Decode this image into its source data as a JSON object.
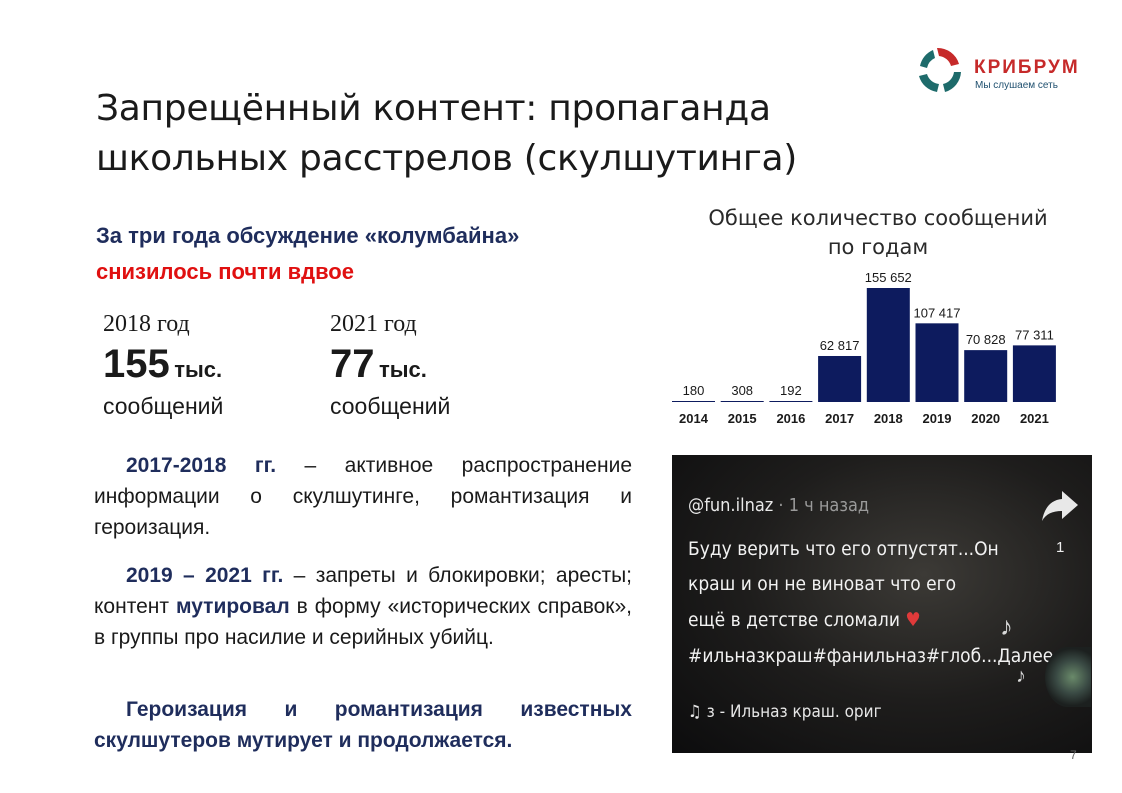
{
  "logo": {
    "name": "КРИБРУМ",
    "tagline": "Мы слушаем сеть"
  },
  "slide": {
    "title_line1": "Запрещённый контент: пропаганда",
    "title_line2": "школьных расстрелов (скулшутинга)",
    "headline_line1": "За три года обсуждение «колумбайна»",
    "headline_line2": "снизилось почти вдвое",
    "stats": [
      {
        "year": "2018 год",
        "number": "155",
        "unit": "тыс.",
        "label": "сообщений"
      },
      {
        "year": "2021 год",
        "number": "77",
        "unit": "тыс.",
        "label": "сообщений"
      }
    ],
    "para1_bold": "2017-2018 гг.",
    "para1_text": " – активное распространение информации о скулшутинге, романтизация и героизация.",
    "para2_bold": "2019 – 2021 гг.",
    "para2_text_a": " – запреты и блокировки; аресты; контент ",
    "para2_bold_b": "мутировал",
    "para2_text_b": " в форму «исторических справок», в группы про насилие и серийных убийц.",
    "para3_bold": "Героизация и романтизация известных скулшутеров мутирует и продолжается.",
    "page_number": "7"
  },
  "screenshot": {
    "user": "@fun.ilnaz",
    "time": " · 1 ч назад",
    "caption_line1": "Буду верить что его отпустят...Он",
    "caption_line2": "краш и он не виноват что его",
    "caption_line3": "ещё в детстве сломали",
    "caption_line4": "#ильназкраш#фанильназ#глоб...Далее",
    "music": "з - Ильназ краш.    ориг",
    "share_count": "1"
  },
  "chart_data": {
    "type": "bar",
    "title_line1": "Общее количество сообщений",
    "title_line2": "по годам",
    "categories": [
      "2014",
      "2015",
      "2016",
      "2017",
      "2018",
      "2019",
      "2020",
      "2021"
    ],
    "values": [
      180,
      308,
      192,
      62817,
      155652,
      107417,
      70828,
      77311
    ],
    "value_labels": [
      "180",
      "308",
      "192",
      "62 817",
      "155 652",
      "107 417",
      "70 828",
      "77 311"
    ],
    "bar_color": "#0d1b5e",
    "ylim": [
      0,
      155652
    ]
  }
}
